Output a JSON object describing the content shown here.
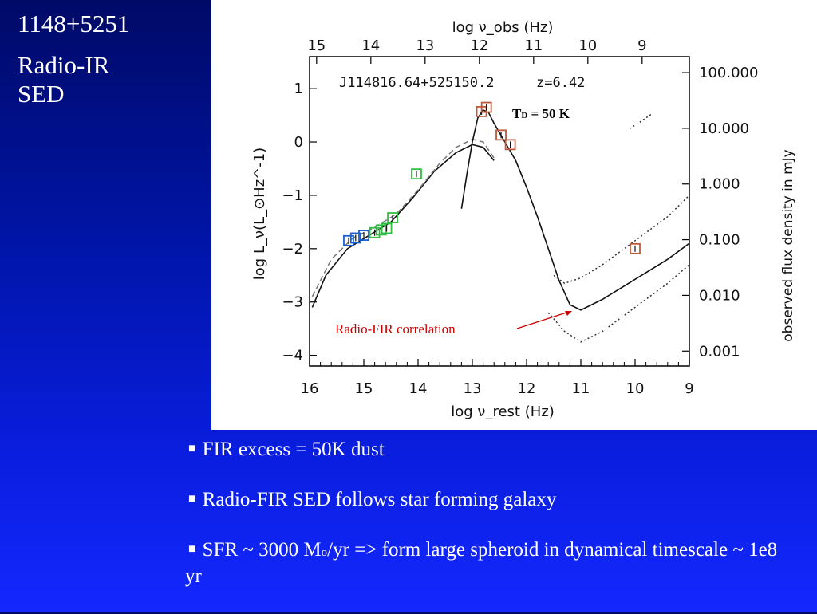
{
  "title": {
    "line1": "1148+5251",
    "line2": "Radio-IR",
    "line3": "SED"
  },
  "bullets": {
    "b1": "FIR excess = 50K dust",
    "b2": "Radio-FIR SED follows star forming galaxy",
    "b3_pre": "SFR ~ 3000 M",
    "b3_sub": "o",
    "b3_post": "/yr => form large spheroid in dynamical timescale ~ 1e8 yr"
  },
  "colors": {
    "background_top": "#000a66",
    "background_bottom": "#1428ff",
    "blue_points": "#1a5fd6",
    "green_points": "#2fbf3f",
    "red_points": "#c0583a",
    "annotation": "#cc0000"
  },
  "chart_data": {
    "type": "line",
    "object_label": "J114816.64+525150.2",
    "redshift_label": "z=6.42",
    "xlabel_bottom": "log ν_rest (Hz)",
    "xlabel_top": "log ν_obs (Hz)",
    "ylabel_left": "log L_ν(L_⊙Hz^-1)",
    "ylabel_right": "observed flux density in mJy",
    "xlim_rest": [
      16,
      9
    ],
    "ylim": [
      -4.2,
      1.6
    ],
    "x_ticks_bottom": [
      "16",
      "15",
      "14",
      "13",
      "12",
      "11",
      "10",
      "9"
    ],
    "x_ticks_top": [
      "15",
      "14",
      "13",
      "12",
      "11",
      "10",
      "9"
    ],
    "y_ticks_left": [
      "1",
      "0",
      "−1",
      "−2",
      "−3",
      "−4"
    ],
    "y_ticks_right": [
      "100.000",
      "10.000",
      "1.000",
      "0.100",
      "0.010",
      "0.001"
    ],
    "annotations": {
      "temperature_prefix": "T",
      "temperature_sub": "D",
      "temperature_value": " = 50 K",
      "radio_fir": "Radio-FIR correlation"
    },
    "series": [
      {
        "style": "solid",
        "x": [
          15.95,
          15.7,
          15.3,
          14.9,
          14.5,
          14.1,
          13.7,
          13.3,
          13.0,
          12.8,
          12.6
        ],
        "y": [
          -3.1,
          -2.5,
          -2.0,
          -1.75,
          -1.5,
          -1.05,
          -0.55,
          -0.2,
          -0.05,
          -0.1,
          -0.35
        ]
      },
      {
        "style": "dashed",
        "x": [
          15.95,
          15.6,
          15.2,
          14.8,
          14.4,
          14.0,
          13.6,
          13.3,
          13.0,
          12.8,
          12.6
        ],
        "y": [
          -2.9,
          -2.2,
          -1.8,
          -1.6,
          -1.35,
          -0.9,
          -0.4,
          -0.1,
          0.05,
          0.0,
          -0.3
        ]
      },
      {
        "style": "solid",
        "x": [
          13.2,
          13.1,
          13.0,
          12.9,
          12.8,
          12.7,
          12.6,
          12.4,
          12.2,
          12.0,
          11.8,
          11.6,
          11.4,
          11.2,
          11.0,
          10.6,
          10.2,
          9.8,
          9.4,
          9.0
        ],
        "y": [
          -1.25,
          -0.6,
          0.0,
          0.45,
          0.6,
          0.55,
          0.35,
          0.0,
          -0.35,
          -0.85,
          -1.4,
          -2.0,
          -2.6,
          -3.05,
          -3.15,
          -2.95,
          -2.7,
          -2.45,
          -2.2,
          -1.9
        ]
      },
      {
        "style": "dotted",
        "x": [
          11.5,
          11.3,
          11.0,
          10.6,
          10.2,
          9.8,
          9.4,
          9.0
        ],
        "y": [
          -2.5,
          -2.65,
          -2.55,
          -2.3,
          -2.0,
          -1.7,
          -1.4,
          -1.0
        ]
      },
      {
        "style": "dotted",
        "x": [
          11.6,
          11.3,
          11.0,
          10.6,
          10.2,
          9.8,
          9.4,
          9.0
        ],
        "y": [
          -3.2,
          -3.55,
          -3.75,
          -3.55,
          -3.25,
          -2.95,
          -2.65,
          -2.3
        ]
      },
      {
        "style": "dotted",
        "x": [
          10.1,
          9.9,
          9.7
        ],
        "y": [
          0.25,
          0.38,
          0.52
        ]
      }
    ],
    "points": [
      {
        "group": "blue",
        "x": 15.28,
        "y": -1.85
      },
      {
        "group": "blue",
        "x": 15.15,
        "y": -1.8
      },
      {
        "group": "blue",
        "x": 15.0,
        "y": -1.75
      },
      {
        "group": "green",
        "x": 14.8,
        "y": -1.7
      },
      {
        "group": "green",
        "x": 14.68,
        "y": -1.65
      },
      {
        "group": "green",
        "x": 14.58,
        "y": -1.62
      },
      {
        "group": "green",
        "x": 14.47,
        "y": -1.42
      },
      {
        "group": "green",
        "x": 14.03,
        "y": -0.6
      },
      {
        "group": "red",
        "x": 12.83,
        "y": 0.57
      },
      {
        "group": "red",
        "x": 12.74,
        "y": 0.65
      },
      {
        "group": "red",
        "x": 12.47,
        "y": 0.13
      },
      {
        "group": "red",
        "x": 12.3,
        "y": -0.05
      },
      {
        "group": "red",
        "x": 10.0,
        "y": -2.0
      }
    ]
  }
}
